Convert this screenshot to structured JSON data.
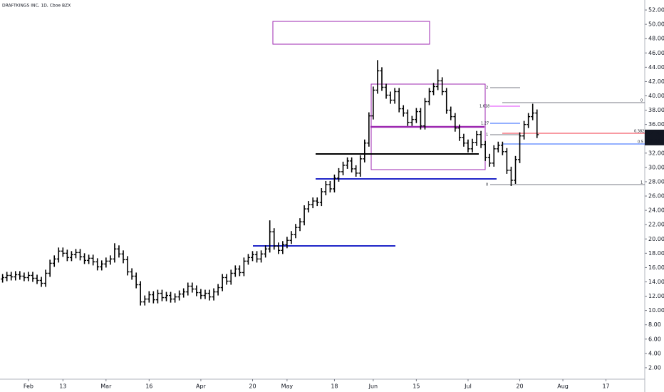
{
  "chart_data": {
    "type": "ohlc",
    "title": "DRAFTKINGS INC, 1D, Cboe BZX",
    "color": "#000000",
    "open": [
      14.4,
      14.6,
      14.9,
      14.7,
      15.0,
      14.8,
      14.6,
      14.9,
      14.5,
      14.2,
      13.8,
      15.2,
      16.6,
      17.2,
      18.3,
      18.0,
      17.4,
      17.8,
      18.1,
      17.5,
      17.0,
      17.3,
      16.8,
      16.1,
      16.5,
      16.9,
      17.2,
      18.6,
      17.9,
      17.1,
      15.4,
      14.8,
      13.6,
      11.2,
      11.6,
      12.2,
      11.5,
      12.4,
      11.8,
      12.1,
      11.6,
      11.9,
      12.3,
      12.6,
      13.4,
      13.0,
      12.5,
      12.1,
      12.4,
      11.9,
      12.6,
      13.2,
      14.6,
      14.1,
      15.2,
      15.8,
      15.3,
      16.9,
      17.4,
      17.8,
      17.2,
      17.9,
      18.6,
      21.0,
      19.0,
      18.4,
      19.2,
      19.8,
      20.6,
      21.6,
      22.4,
      24.2,
      24.8,
      25.3,
      25.1,
      26.6,
      27.6,
      27.0,
      28.5,
      29.4,
      30.3,
      30.9,
      29.8,
      29.2,
      31.2,
      33.4,
      37.2,
      40.8,
      43.5,
      41.2,
      40.1,
      39.4,
      40.6,
      38.2,
      37.6,
      36.3,
      36.7,
      37.8,
      35.8,
      39.2,
      40.6,
      41.3,
      42.1,
      40.6,
      38.0,
      37.1,
      35.5,
      34.2,
      33.4,
      32.6,
      33.5,
      34.6,
      33.2,
      31.4,
      30.6,
      32.6,
      33.1,
      32.2,
      29.6,
      28.2,
      31.1,
      34.4,
      36.0,
      37.1,
      37.6
    ],
    "high": [
      15.1,
      15.4,
      15.4,
      15.5,
      15.5,
      15.3,
      15.4,
      15.4,
      15.0,
      14.7,
      15.7,
      17.1,
      17.7,
      18.8,
      18.8,
      18.5,
      18.3,
      18.6,
      18.6,
      18.0,
      17.8,
      17.8,
      17.3,
      17.0,
      17.4,
      17.7,
      19.4,
      19.1,
      18.4,
      17.6,
      15.9,
      15.3,
      14.1,
      12.1,
      12.7,
      12.7,
      12.9,
      12.9,
      12.6,
      12.6,
      12.4,
      12.8,
      13.1,
      13.9,
      13.9,
      13.5,
      13.0,
      12.9,
      12.9,
      13.1,
      13.7,
      15.1,
      15.1,
      15.7,
      16.3,
      16.3,
      17.4,
      17.9,
      18.3,
      18.3,
      18.4,
      19.1,
      22.6,
      21.5,
      19.5,
      19.7,
      20.3,
      21.1,
      22.1,
      22.9,
      24.7,
      25.3,
      25.8,
      25.8,
      27.1,
      28.1,
      28.1,
      29.0,
      29.9,
      30.8,
      31.4,
      31.4,
      30.3,
      31.7,
      33.9,
      37.7,
      41.3,
      45.0,
      44.0,
      41.7,
      40.6,
      41.1,
      41.1,
      38.7,
      38.1,
      37.2,
      38.3,
      38.3,
      39.7,
      41.1,
      41.8,
      43.7,
      42.6,
      41.1,
      38.5,
      37.6,
      36.0,
      34.7,
      33.9,
      34.0,
      35.1,
      35.1,
      33.7,
      31.9,
      33.1,
      33.6,
      33.6,
      32.7,
      30.1,
      31.6,
      34.9,
      36.5,
      37.6,
      38.9,
      38.1
    ],
    "low": [
      13.9,
      14.1,
      14.2,
      14.2,
      14.3,
      14.1,
      14.1,
      14.0,
      13.7,
      13.3,
      13.3,
      14.7,
      16.1,
      16.7,
      17.5,
      16.9,
      16.9,
      17.3,
      17.0,
      16.5,
      16.5,
      16.3,
      15.6,
      15.6,
      16.0,
      16.4,
      16.7,
      17.4,
      16.6,
      14.9,
      14.3,
      13.1,
      10.7,
      10.7,
      11.1,
      11.0,
      11.0,
      11.3,
      11.3,
      11.1,
      11.1,
      11.4,
      11.8,
      12.1,
      12.5,
      12.0,
      11.6,
      11.6,
      11.4,
      11.4,
      12.1,
      12.7,
      13.6,
      13.6,
      14.7,
      14.8,
      14.8,
      16.4,
      16.9,
      16.7,
      16.7,
      17.4,
      18.1,
      18.5,
      17.9,
      17.9,
      18.7,
      19.3,
      20.1,
      21.1,
      21.9,
      23.7,
      24.3,
      24.6,
      24.6,
      26.1,
      26.5,
      26.5,
      28.0,
      28.9,
      29.8,
      29.3,
      28.7,
      28.7,
      30.7,
      32.9,
      36.7,
      40.3,
      40.7,
      39.6,
      38.9,
      38.9,
      37.7,
      37.1,
      35.8,
      35.8,
      36.2,
      35.3,
      35.3,
      38.7,
      40.1,
      40.8,
      40.1,
      37.5,
      36.6,
      35.0,
      33.7,
      32.9,
      32.1,
      32.1,
      33.0,
      32.7,
      30.9,
      30.1,
      30.1,
      32.1,
      31.7,
      29.1,
      27.4,
      27.7,
      30.6,
      33.9,
      35.5,
      36.6,
      34.1
    ],
    "close": [
      14.6,
      14.9,
      14.7,
      15.0,
      14.8,
      14.6,
      14.9,
      14.5,
      14.2,
      13.8,
      15.2,
      16.6,
      17.2,
      18.3,
      18.0,
      17.4,
      17.8,
      18.1,
      17.5,
      17.0,
      17.3,
      16.8,
      16.1,
      16.5,
      16.9,
      17.2,
      18.6,
      17.9,
      17.1,
      15.4,
      14.8,
      13.6,
      11.2,
      11.6,
      12.2,
      11.5,
      12.4,
      11.8,
      12.1,
      11.6,
      11.9,
      12.3,
      12.6,
      13.4,
      13.0,
      12.5,
      12.1,
      12.4,
      11.9,
      12.6,
      13.2,
      14.6,
      14.1,
      15.2,
      15.8,
      15.3,
      16.9,
      17.4,
      17.8,
      17.2,
      17.9,
      18.6,
      21.0,
      19.0,
      18.4,
      19.2,
      19.8,
      20.6,
      21.6,
      22.4,
      24.2,
      24.8,
      25.3,
      25.1,
      26.6,
      27.6,
      27.0,
      28.5,
      29.4,
      30.3,
      30.9,
      29.8,
      29.2,
      31.2,
      33.4,
      37.2,
      40.8,
      43.5,
      41.2,
      40.1,
      39.4,
      40.6,
      38.2,
      37.6,
      36.3,
      36.7,
      37.8,
      35.8,
      39.2,
      40.6,
      41.3,
      42.1,
      40.6,
      38.0,
      37.1,
      35.5,
      34.2,
      33.4,
      32.6,
      33.5,
      34.6,
      33.2,
      31.4,
      30.6,
      32.6,
      33.1,
      32.2,
      29.6,
      28.2,
      31.1,
      34.4,
      36.0,
      37.1,
      37.6,
      34.58
    ],
    "xlim": [
      -0.6,
      149
    ],
    "xticks": [
      {
        "value": 6,
        "label": "Feb"
      },
      {
        "value": 14,
        "label": "13"
      },
      {
        "value": 24,
        "label": "Mar"
      },
      {
        "value": 34,
        "label": "16"
      },
      {
        "value": 46,
        "label": "Apr"
      },
      {
        "value": 58,
        "label": "20"
      },
      {
        "value": 66,
        "label": "May"
      },
      {
        "value": 77,
        "label": "18"
      },
      {
        "value": 86,
        "label": "Jun"
      },
      {
        "value": 96,
        "label": "15"
      },
      {
        "value": 108,
        "label": "Jul"
      },
      {
        "value": 120,
        "label": "20"
      },
      {
        "value": 130,
        "label": "Aug"
      },
      {
        "value": 140,
        "label": "17"
      }
    ],
    "ylim": [
      0.4,
      53.4
    ],
    "yticks": [
      {
        "value": 2,
        "label": "2.00"
      },
      {
        "value": 4,
        "label": "4.00"
      },
      {
        "value": 6,
        "label": "6.00"
      },
      {
        "value": 8,
        "label": "8.00"
      },
      {
        "value": 10,
        "label": "10.00"
      },
      {
        "value": 12,
        "label": "12.00"
      },
      {
        "value": 14,
        "label": "14.00"
      },
      {
        "value": 16,
        "label": "16.00"
      },
      {
        "value": 18,
        "label": "18.00"
      },
      {
        "value": 20,
        "label": "20.00"
      },
      {
        "value": 22,
        "label": "22.00"
      },
      {
        "value": 24,
        "label": "24.00"
      },
      {
        "value": 26,
        "label": "26.00"
      },
      {
        "value": 28,
        "label": "28.00"
      },
      {
        "value": 30,
        "label": "30.00"
      },
      {
        "value": 32,
        "label": "32.00"
      },
      {
        "value": 34,
        "label": "34.00"
      },
      {
        "value": 36,
        "label": "36.00"
      },
      {
        "value": 38,
        "label": "38.00"
      },
      {
        "value": 40,
        "label": "40.00"
      },
      {
        "value": 42,
        "label": "42.00"
      },
      {
        "value": 44,
        "label": "44.00"
      },
      {
        "value": 46,
        "label": "46.00"
      },
      {
        "value": 48,
        "label": "48.00"
      },
      {
        "value": 50,
        "label": "50.00"
      },
      {
        "value": 52,
        "label": "52.00"
      }
    ],
    "countdown": "06:08:5",
    "annotations": {
      "fib_left": [
        "2",
        "1.618",
        "1.27",
        "1",
        "0"
      ],
      "fib_right": [
        "0",
        "0.382",
        "0.5",
        "1"
      ]
    }
  }
}
